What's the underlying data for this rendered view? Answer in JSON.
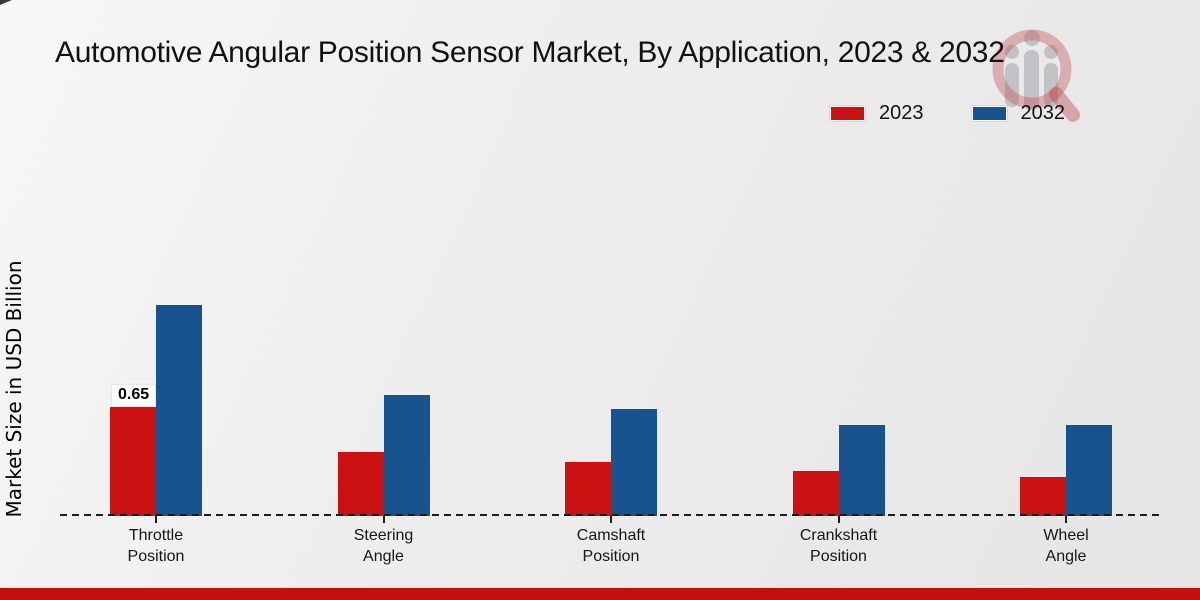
{
  "title": "Automotive Angular Position Sensor Market, By Application, 2023 & 2032",
  "y_axis_label": "Market Size in USD Billion",
  "chart_data": {
    "type": "bar",
    "title": "Automotive Angular Position Sensor Market, By Application, 2023 & 2032",
    "xlabel": "",
    "ylabel": "Market Size in USD Billion",
    "categories": [
      "Throttle Position",
      "Steering Angle",
      "Camshaft Position",
      "Crankshaft Position",
      "Wheel Angle"
    ],
    "series": [
      {
        "name": "2023",
        "color": "#cc1112",
        "values": [
          0.65,
          0.38,
          0.32,
          0.27,
          0.23
        ]
      },
      {
        "name": "2032",
        "color": "#17538e",
        "values": [
          1.26,
          0.72,
          0.64,
          0.54,
          0.54
        ]
      }
    ],
    "annotations": [
      {
        "series": "2023",
        "category": "Throttle Position",
        "text": "0.65"
      }
    ],
    "ylim": [
      0,
      1.45
    ],
    "grid": false,
    "legend_position": "top-right",
    "baseline_style": "black dashed line at y=0, no other axes"
  },
  "watermark": {
    "name": "market-research-magnifier-logo"
  },
  "footer": {
    "bar_color": "#c40f11"
  },
  "colors": {
    "background_start": "#f7f7f7",
    "background_end": "#e5e5e5",
    "series_2023": "#cc1112",
    "series_2032": "#17538e",
    "baseline": "#1c1c1c"
  }
}
